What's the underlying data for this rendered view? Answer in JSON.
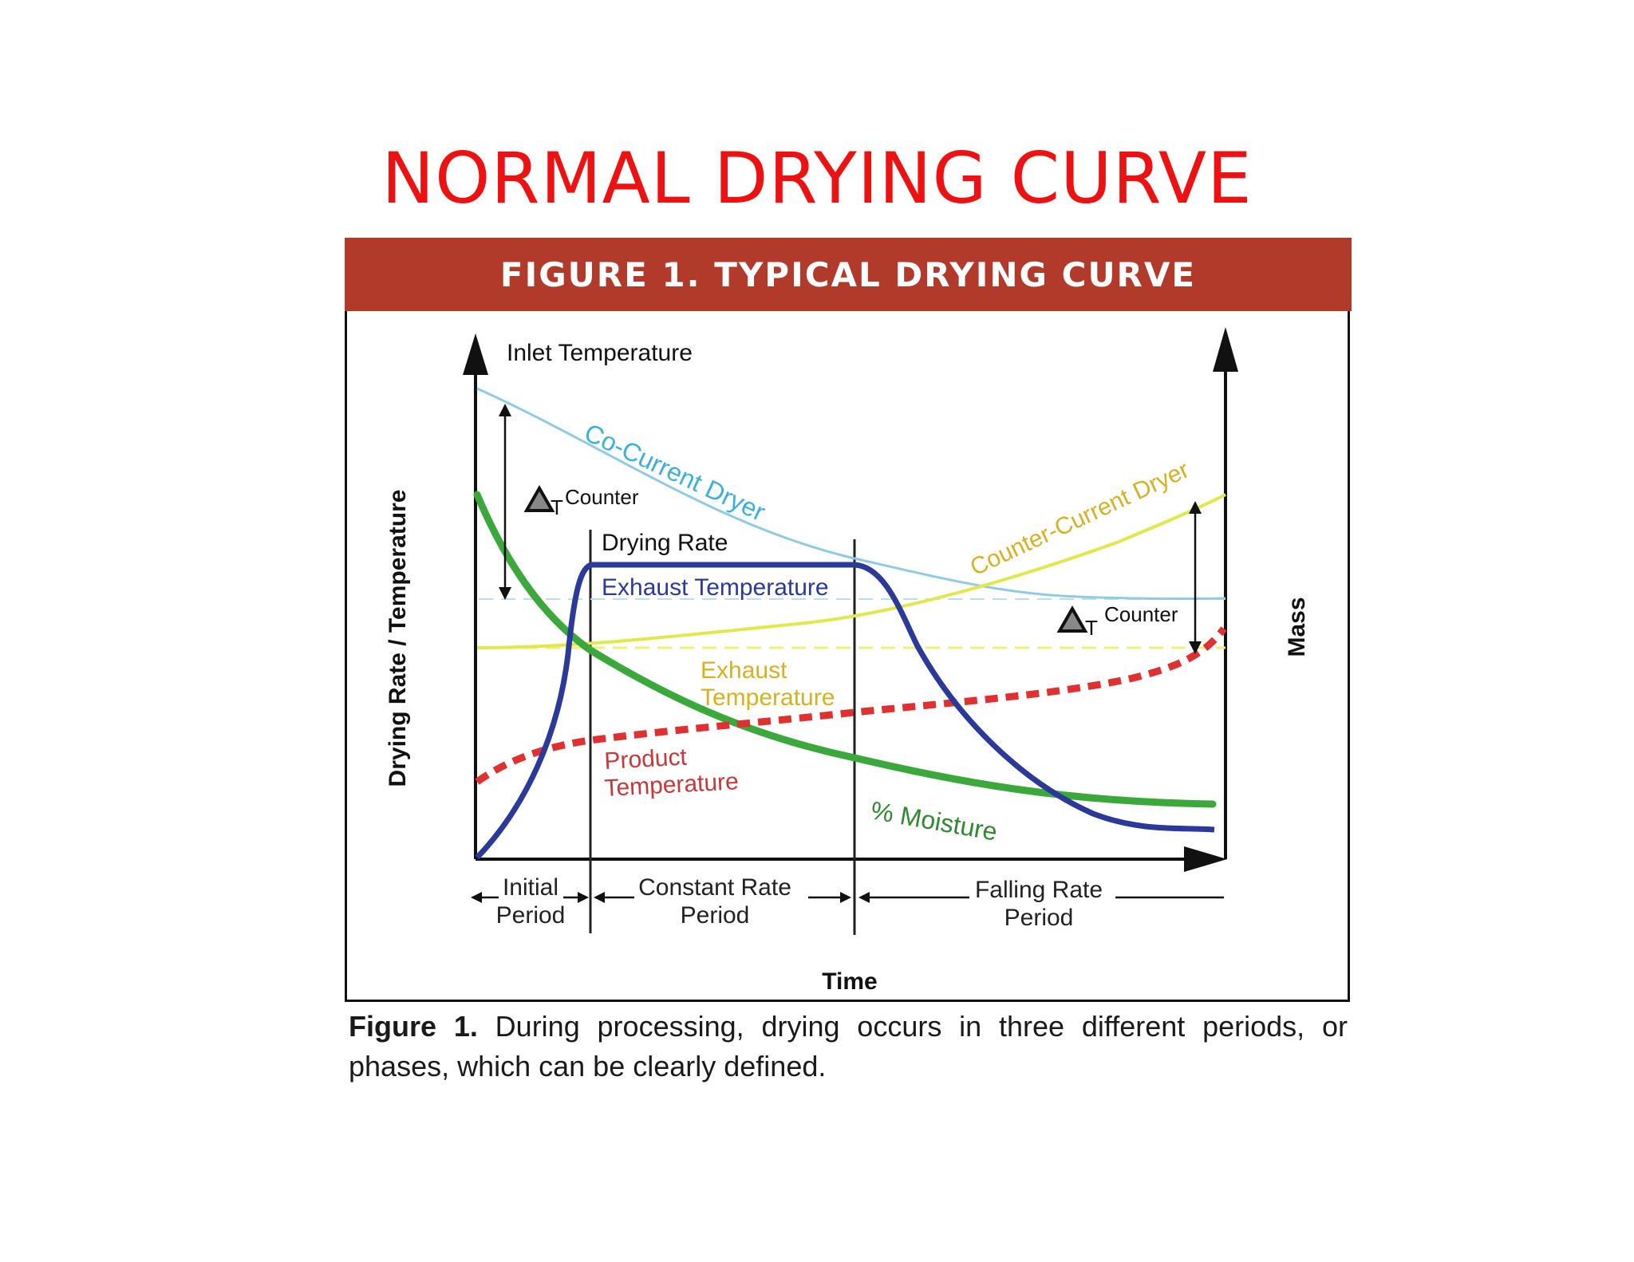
{
  "slide_title": "NORMAL DRYING CURVE",
  "figure": {
    "banner": "FIGURE 1. TYPICAL DRYING CURVE",
    "y_axis_left": "Drying Rate / Temperature",
    "y_axis_right": "Mass",
    "x_axis": "Time",
    "labels": {
      "inlet_temperature": "Inlet Temperature",
      "co_current_dryer": "Co-Current Dryer",
      "counter_current_dryer": "Counter-Current Dryer",
      "delta_symbol": "Δ",
      "delta_sub": "T",
      "delta_word": "Counter",
      "drying_rate": "Drying Rate",
      "exhaust_temperature_blue": "Exhaust Temperature",
      "exhaust_temperature_yellow_1": "Exhaust",
      "exhaust_temperature_yellow_2": "Temperature",
      "product_temperature_1": "Product",
      "product_temperature_2": "Temperature",
      "moisture": "% Moisture"
    },
    "periods": [
      {
        "line1": "Initial",
        "line2": "Period"
      },
      {
        "line1": "Constant Rate",
        "line2": "Period"
      },
      {
        "line1": "Falling Rate",
        "line2": "Period"
      }
    ],
    "colors": {
      "co_current": "#8fcbe6",
      "counter_current": "#e2e84a",
      "drying_rate": "#2b3a9a",
      "moisture": "#3aa83a",
      "product_temperature": "#e03030",
      "banner": "#b13a2a",
      "title": "#ee1111"
    }
  },
  "caption": {
    "bold": "Figure 1.",
    "text": "During processing, drying occurs in three different periods, or phases, which can be clearly defined."
  }
}
